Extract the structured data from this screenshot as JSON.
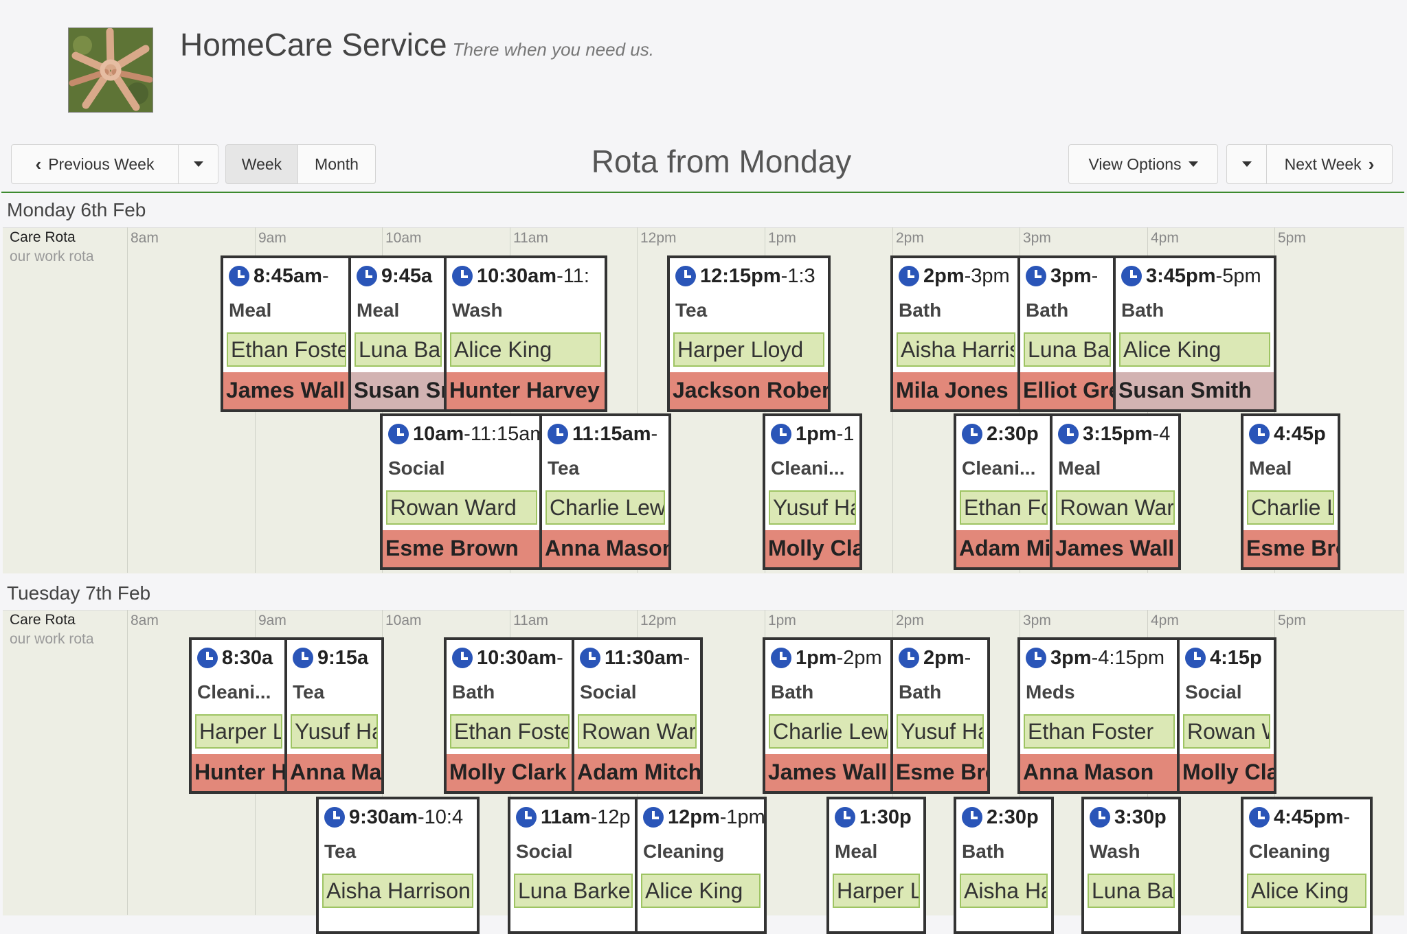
{
  "header": {
    "title": "HomeCare Service",
    "tagline": "There when you need us."
  },
  "toolbar": {
    "previous_week": "Previous Week",
    "week": "Week",
    "month": "Month",
    "rota_title": "Rota from Monday",
    "view_options": "View Options",
    "next_week": "Next Week"
  },
  "hours": [
    "8am",
    "9am",
    "10am",
    "11am",
    "12pm",
    "1pm",
    "2pm",
    "3pm",
    "4pm",
    "5pm"
  ],
  "days": [
    {
      "label": "Monday 6th Feb",
      "rota_name": "Care Rota",
      "rota_sub": "our work rota",
      "visits": [
        {
          "start": 8.75,
          "end": 9.75,
          "row": 0,
          "time": "8:45am",
          "time_rest": "-",
          "type": "Meal",
          "client": "Ethan Foster",
          "carer": "James Wall"
        },
        {
          "start": 9.75,
          "end": 10.5,
          "row": 0,
          "time": "9:45a",
          "time_rest": "",
          "type": "Meal",
          "client": "Luna Barker",
          "carer": "Susan Smith",
          "carer_style": "grey"
        },
        {
          "start": 10.5,
          "end": 11.75,
          "row": 0,
          "time": "10:30am",
          "time_rest": "-11:",
          "type": "Wash",
          "client": "Alice King",
          "carer": "Hunter Harvey"
        },
        {
          "start": 12.25,
          "end": 13.5,
          "row": 0,
          "time": "12:15pm",
          "time_rest": "-1:3",
          "type": "Tea",
          "client": "Harper Lloyd",
          "carer": "Jackson Roberts"
        },
        {
          "start": 14.0,
          "end": 15.0,
          "row": 0,
          "time": "2pm",
          "time_rest": "-3pm",
          "type": "Bath",
          "client": "Aisha Harrison",
          "carer": "Mila Jones"
        },
        {
          "start": 15.0,
          "end": 15.75,
          "row": 0,
          "time": "3pm",
          "time_rest": "-",
          "type": "Bath",
          "client": "Luna Barker",
          "carer": "Elliot Green"
        },
        {
          "start": 15.75,
          "end": 17.0,
          "row": 0,
          "time": "3:45pm",
          "time_rest": "-5pm",
          "type": "Bath",
          "client": "Alice King",
          "carer": "Susan Smith",
          "carer_style": "grey"
        },
        {
          "start": 10.0,
          "end": 11.25,
          "row": 1,
          "time": "10am",
          "time_rest": "-11:15am",
          "type": "Social",
          "client": "Rowan Ward",
          "carer": "Esme Brown"
        },
        {
          "start": 11.25,
          "end": 12.25,
          "row": 1,
          "time": "11:15am",
          "time_rest": "-",
          "type": "Tea",
          "client": "Charlie Lewis",
          "carer": "Anna Mason"
        },
        {
          "start": 13.0,
          "end": 13.75,
          "row": 1,
          "time": "1pm",
          "time_rest": "-1",
          "type": "Cleani...",
          "client": "Yusuf Hassan",
          "carer": "Molly Clark"
        },
        {
          "start": 14.5,
          "end": 15.25,
          "row": 1,
          "time": "2:30p",
          "time_rest": "",
          "type": "Cleani...",
          "client": "Ethan Foster",
          "carer": "Adam Mitchell"
        },
        {
          "start": 15.25,
          "end": 16.25,
          "row": 1,
          "time": "3:15pm",
          "time_rest": "-4",
          "type": "Meal",
          "client": "Rowan Ward",
          "carer": "James Wall"
        },
        {
          "start": 16.75,
          "end": 17.5,
          "row": 1,
          "time": "4:45p",
          "time_rest": "",
          "type": "Meal",
          "client": "Charlie Lewis",
          "carer": "Esme Brown"
        }
      ]
    },
    {
      "label": "Tuesday 7th Feb",
      "rota_name": "Care Rota",
      "rota_sub": "our work rota",
      "visits": [
        {
          "start": 8.5,
          "end": 9.25,
          "row": 0,
          "time": "8:30a",
          "time_rest": "",
          "type": "Cleani...",
          "client": "Harper Lloyd",
          "carer": "Hunter Harvey"
        },
        {
          "start": 9.25,
          "end": 10.0,
          "row": 0,
          "time": "9:15a",
          "time_rest": "",
          "type": "Tea",
          "client": "Yusuf Hassan",
          "carer": "Anna Mason"
        },
        {
          "start": 10.5,
          "end": 11.5,
          "row": 0,
          "time": "10:30am",
          "time_rest": "-",
          "type": "Bath",
          "client": "Ethan Foster",
          "carer": "Molly Clark"
        },
        {
          "start": 11.5,
          "end": 12.5,
          "row": 0,
          "time": "11:30am",
          "time_rest": "-",
          "type": "Social",
          "client": "Rowan Ward",
          "carer": "Adam Mitchell"
        },
        {
          "start": 13.0,
          "end": 14.0,
          "row": 0,
          "time": "1pm",
          "time_rest": "-2pm",
          "type": "Bath",
          "client": "Charlie Lewis",
          "carer": "James Wall"
        },
        {
          "start": 14.0,
          "end": 14.75,
          "row": 0,
          "time": "2pm",
          "time_rest": "-",
          "type": "Bath",
          "client": "Yusuf Hassan",
          "carer": "Esme Brown"
        },
        {
          "start": 15.0,
          "end": 16.25,
          "row": 0,
          "time": "3pm",
          "time_rest": "-4:15pm",
          "type": "Meds",
          "client": "Ethan Foster",
          "carer": "Anna Mason"
        },
        {
          "start": 16.25,
          "end": 17.0,
          "row": 0,
          "time": "4:15p",
          "time_rest": "",
          "type": "Social",
          "client": "Rowan Ward",
          "carer": "Molly Clark"
        },
        {
          "start": 9.5,
          "end": 10.75,
          "row": 1,
          "time": "9:30am",
          "time_rest": "-10:4",
          "type": "Tea",
          "client": "Aisha Harrison",
          "carer": ""
        },
        {
          "start": 11.0,
          "end": 12.0,
          "row": 1,
          "time": "11am",
          "time_rest": "-12p",
          "type": "Social",
          "client": "Luna Barker",
          "carer": ""
        },
        {
          "start": 12.0,
          "end": 13.0,
          "row": 1,
          "time": "12pm",
          "time_rest": "-1pm",
          "type": "Cleaning",
          "client": "Alice King",
          "carer": ""
        },
        {
          "start": 13.5,
          "end": 14.25,
          "row": 1,
          "time": "1:30p",
          "time_rest": "",
          "type": "Meal",
          "client": "Harper Lloyd",
          "carer": ""
        },
        {
          "start": 14.5,
          "end": 15.25,
          "row": 1,
          "time": "2:30p",
          "time_rest": "",
          "type": "Bath",
          "client": "Aisha Harrison",
          "carer": ""
        },
        {
          "start": 15.5,
          "end": 16.25,
          "row": 1,
          "time": "3:30p",
          "time_rest": "",
          "type": "Wash",
          "client": "Luna Barker",
          "carer": ""
        },
        {
          "start": 16.75,
          "end": 17.75,
          "row": 1,
          "time": "4:45pm",
          "time_rest": "-",
          "type": "Cleaning",
          "client": "Alice King",
          "carer": ""
        }
      ]
    }
  ]
}
